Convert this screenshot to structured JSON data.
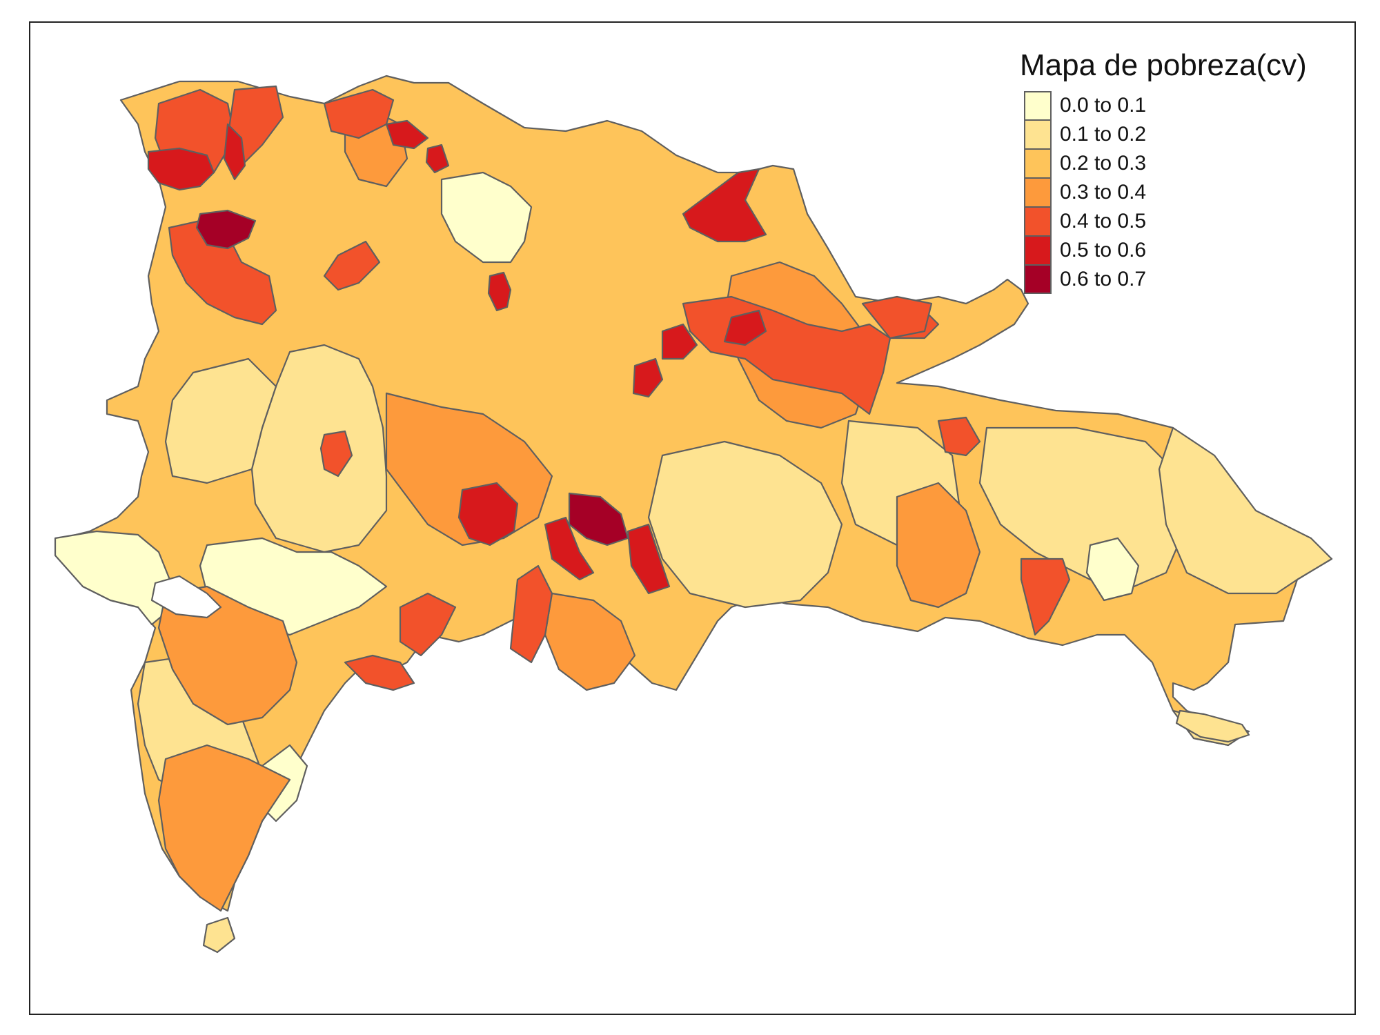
{
  "map": {
    "title": "Mapa de pobreza(cv)",
    "legend": [
      {
        "label": "0.0 to 0.1",
        "color": "#ffffcc"
      },
      {
        "label": "0.1 to 0.2",
        "color": "#fee391"
      },
      {
        "label": "0.2 to 0.3",
        "color": "#fec45a"
      },
      {
        "label": "0.3 to 0.4",
        "color": "#fd9a3c"
      },
      {
        "label": "0.4 to 0.5",
        "color": "#f2522b"
      },
      {
        "label": "0.5 to 0.6",
        "color": "#d7191c"
      },
      {
        "label": "0.6 to 0.7",
        "color": "#a50026"
      }
    ]
  }
}
